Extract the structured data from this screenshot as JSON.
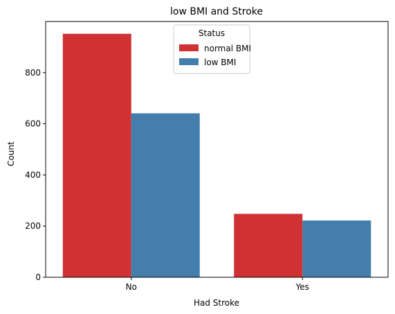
{
  "chart_data": {
    "type": "bar",
    "title": "low BMI and Stroke",
    "xlabel": "Had Stroke",
    "ylabel": "Count",
    "categories": [
      "No",
      "Yes"
    ],
    "series": [
      {
        "name": "normal BMI",
        "color": "#d03234",
        "values": [
          952,
          248
        ]
      },
      {
        "name": "low BMI",
        "color": "#437ead",
        "values": [
          641,
          222
        ]
      }
    ],
    "ylim": [
      0,
      1000
    ],
    "yticks": [
      0,
      200,
      400,
      600,
      800
    ],
    "legend": {
      "title": "Status",
      "position": "top-center"
    },
    "grid": false
  }
}
